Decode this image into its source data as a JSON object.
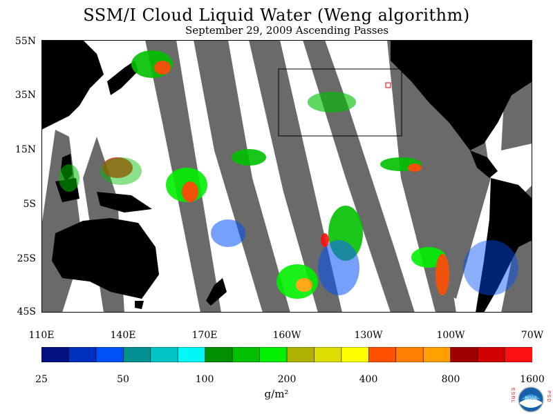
{
  "title": "SSM/I Cloud Liquid Water (Weng algorithm)",
  "subtitle": "September 29, 2009  Ascending Passes",
  "latitude_labels": [
    "55N",
    "35N",
    "15N",
    "5S",
    "25S",
    "45S"
  ],
  "longitude_labels": [
    "110E",
    "140E",
    "170E",
    "160W",
    "130W",
    "100W",
    "70W"
  ],
  "colorbar": {
    "labels": [
      "25",
      "50",
      "100",
      "200",
      "400",
      "800",
      "1600"
    ],
    "colors": [
      "#001080",
      "#0030c0",
      "#0050f8",
      "#009090",
      "#00c4c4",
      "#00f8f8",
      "#009000",
      "#00c000",
      "#00f000",
      "#b0b000",
      "#dcdc00",
      "#ffff00",
      "#ff5000",
      "#ff8000",
      "#ffa000",
      "#a00000",
      "#d00000",
      "#ff1010"
    ],
    "units": "g/m²"
  },
  "logo": {
    "left_text": "ESRL",
    "right_text": "PSD",
    "center_text": "NOAA"
  },
  "colors": {
    "land": "#000000",
    "no_data_swath_gap": "#6a6a6a",
    "ocean_clear": "#ffffff",
    "box_outline": "#000000"
  }
}
